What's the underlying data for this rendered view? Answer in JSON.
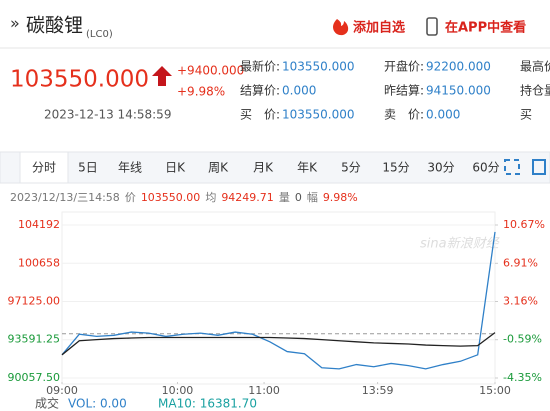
{
  "header": {
    "title": "碳酸锂",
    "code": "(LC0)",
    "add": "添加自选",
    "app": "在APP中查看"
  },
  "quote": {
    "price": "103550.000",
    "change": "+9400.000",
    "change_pct": "+9.98%",
    "time": "2023-12-13 14:58:59"
  },
  "info": {
    "rows": [
      [
        {
          "label": "最新价:",
          "value": "103550.000"
        },
        {
          "label": "开盘价:",
          "value": "92200.000"
        },
        {
          "label": "最高价"
        }
      ],
      [
        {
          "label": "结算价:",
          "value": "0.000"
        },
        {
          "label": "昨结算:",
          "value": "94150.000"
        },
        {
          "label": "持仓量"
        }
      ],
      [
        {
          "label": "买　价:",
          "value": "103550.000"
        },
        {
          "label": "卖　价:",
          "value": "0.000"
        },
        {
          "label": "买"
        }
      ]
    ]
  },
  "tabs": [
    "分时",
    "5日",
    "年线",
    "日K",
    "周K",
    "月K",
    "年K",
    "5分",
    "15分",
    "30分",
    "60分"
  ],
  "active_tab": 0,
  "status": {
    "time": "2023/12/13/三14:58",
    "price_label": "价",
    "price": "103550.00",
    "avg_label": "均",
    "avg": "94249.71",
    "vol_label": "量",
    "vol": "0",
    "amp_label": "幅",
    "amp": "9.98%"
  },
  "watermark": "sina新浪财经",
  "chart_data": {
    "type": "line",
    "x": [
      0,
      9,
      18,
      27,
      36,
      45,
      54,
      63,
      72,
      81,
      90,
      99,
      108,
      117,
      126,
      135,
      144,
      153,
      162,
      171,
      180,
      189,
      198,
      207,
      216,
      225
    ],
    "xlim": [
      0,
      225
    ],
    "xticks": [
      {
        "value": 0,
        "label": "09:00"
      },
      {
        "value": 60,
        "label": "10:00"
      },
      {
        "value": 105,
        "label": "11:00"
      },
      {
        "value": 164,
        "label": "13:59"
      },
      {
        "value": 225,
        "label": "15:00"
      }
    ],
    "ylim": [
      90057.5,
      104192
    ],
    "yticks": [
      104192,
      100658,
      {
        "value": 97125,
        "label": "97125.00"
      },
      {
        "value": 93591.25,
        "label": "93591.25"
      },
      {
        "value": 90057.5,
        "label": "90057.50"
      }
    ],
    "y2lim": [
      -4.35,
      10.67
    ],
    "y2ticks": [
      {
        "value": 10.67,
        "label": "10.67%"
      },
      {
        "value": 6.91,
        "label": "6.91%"
      },
      {
        "value": 3.16,
        "label": "3.16%"
      },
      {
        "value": -0.59,
        "label": "-0.59%"
      },
      {
        "value": -4.35,
        "label": "-4.35%"
      }
    ],
    "reference_line": 94150,
    "series": [
      {
        "color": "#2f80c8",
        "values": [
          92200,
          94100,
          93900,
          94000,
          94300,
          94200,
          93900,
          94100,
          94200,
          94000,
          94300,
          94100,
          93400,
          92500,
          92300,
          91000,
          90900,
          91300,
          91100,
          91400,
          91200,
          90900,
          91300,
          91600,
          92200,
          103550
        ]
      },
      {
        "color": "#222222",
        "values": [
          92200,
          93500,
          93600,
          93700,
          93750,
          93800,
          93800,
          93800,
          93800,
          93800,
          93800,
          93800,
          93800,
          93750,
          93700,
          93600,
          93500,
          93400,
          93300,
          93250,
          93200,
          93100,
          93050,
          93000,
          93050,
          94249.71
        ]
      }
    ]
  },
  "footer": {
    "label": "成交",
    "vol": "VOL: 0.00",
    "ma": "MA10: 16381.70"
  }
}
